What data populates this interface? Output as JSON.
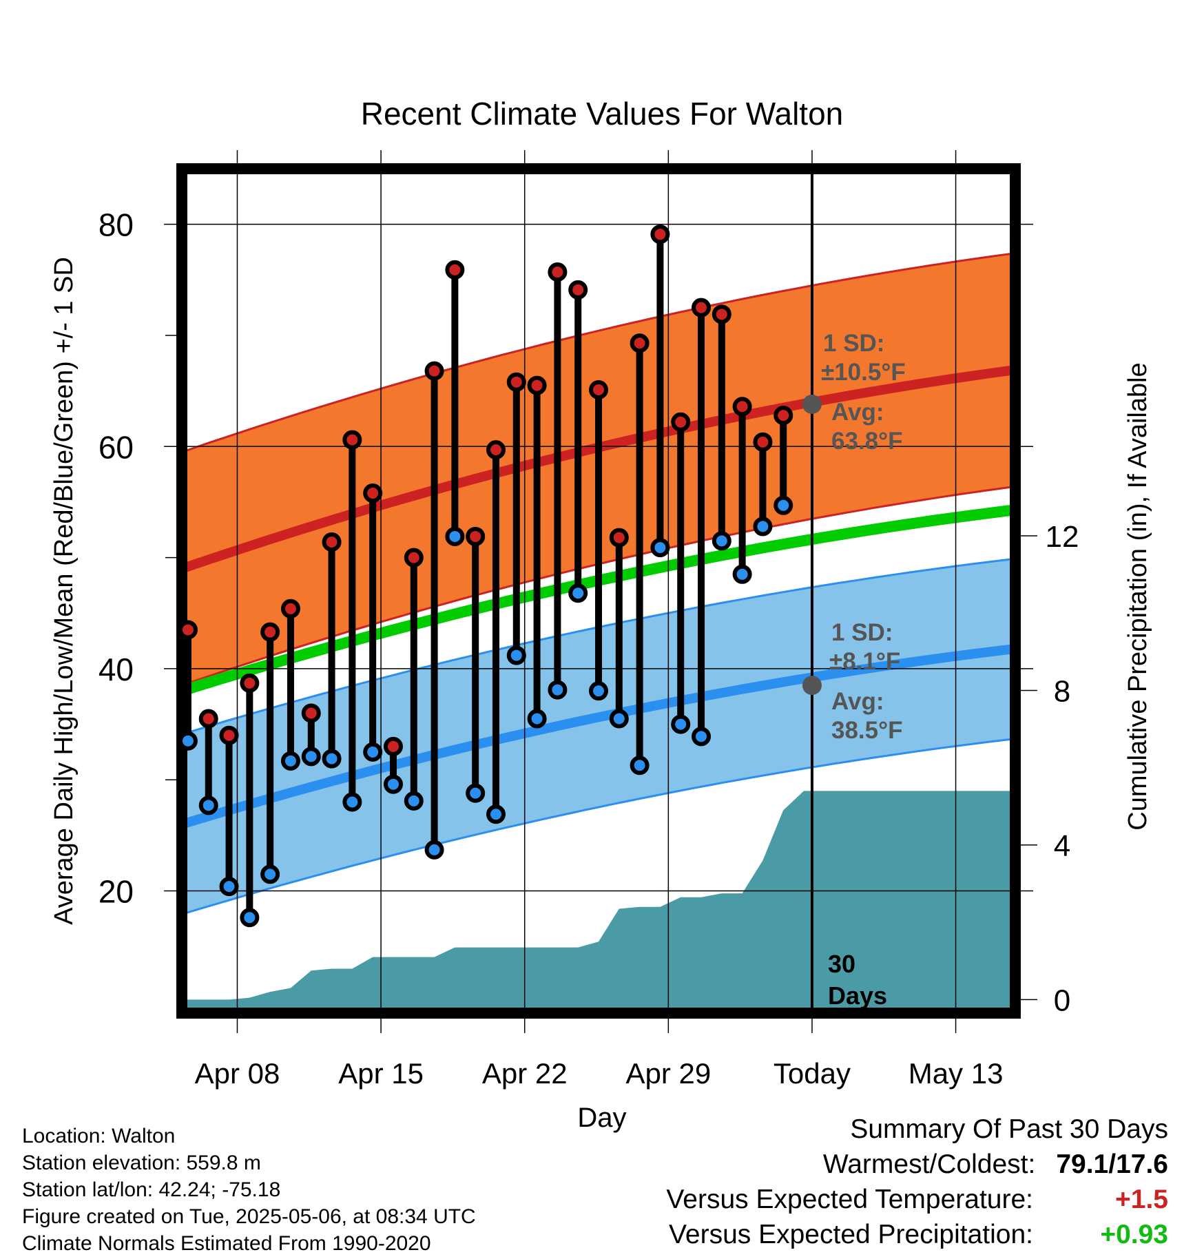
{
  "title": "Recent Climate Values For Walton",
  "colors": {
    "high": "#cc2222",
    "low": "#2b8ff0",
    "mean": "#00cc00",
    "warm_band": "#f4772e",
    "cold_band": "#86c3ea",
    "precip": "#4a9ba5",
    "avg_marker": "#555555",
    "pos_temp": "#cc2222",
    "pos_precip": "#11bb11"
  },
  "chart_data": {
    "type": "line",
    "xlabel": "Day",
    "ylabel": "Average Daily High/Low/Mean (Red/Blue/Green) +/- 1 SD",
    "y2label": "Cumulative Precipitation (in), If Available",
    "ylim": [
      9,
      85
    ],
    "y2lim": [
      -0.35,
      21.5
    ],
    "y_ticks": [
      "20",
      "40",
      "60",
      "80"
    ],
    "y2_ticks": [
      "0",
      "4",
      "8",
      "12"
    ],
    "x_ticks": [
      "Apr 08",
      "Apr 15",
      "Apr 22",
      "Apr 29",
      "Today",
      "May 13"
    ],
    "x_tick_days": [
      8,
      15,
      22,
      29,
      36,
      43
    ],
    "xlim": [
      5.3,
      45.9
    ],
    "today_day": 36,
    "days": [
      5.6,
      6.6,
      7.6,
      8.6,
      9.6,
      10.6,
      11.6,
      12.6,
      13.6,
      14.6,
      15.6,
      16.6,
      17.6,
      18.6,
      19.6,
      20.6,
      21.6,
      22.6,
      23.6,
      24.6,
      25.6,
      26.6,
      27.6,
      28.6,
      29.6,
      30.6,
      31.6,
      32.6,
      33.6,
      34.6
    ],
    "highs": [
      43.5,
      35.5,
      34.0,
      38.7,
      43.3,
      45.4,
      36.0,
      51.4,
      60.6,
      55.8,
      33.0,
      50.0,
      66.8,
      75.9,
      51.9,
      59.7,
      65.8,
      65.5,
      75.7,
      74.1,
      65.1,
      51.8,
      69.3,
      79.1,
      62.2,
      72.5,
      71.9,
      63.6,
      60.4,
      62.8
    ],
    "lows": [
      33.5,
      27.7,
      20.4,
      17.6,
      21.5,
      31.7,
      32.1,
      31.9,
      28.0,
      32.5,
      29.6,
      28.1,
      23.7,
      51.9,
      28.8,
      26.9,
      41.2,
      35.5,
      38.1,
      46.8,
      38.0,
      35.5,
      31.3,
      50.9,
      35.0,
      33.9,
      51.5,
      48.5,
      52.8,
      54.7
    ],
    "normal_days": [
      5.3,
      45.9
    ],
    "normal_high": [
      49.0,
      66.9
    ],
    "normal_low": [
      26.0,
      41.8
    ],
    "normal_mean": [
      38.0,
      54.3
    ],
    "high_sd": 10.5,
    "low_sd": 8.1,
    "high_sd_label": "1 SD:",
    "high_sd_value": "±10.5°F",
    "high_avg_label": "Avg:",
    "high_avg_value": "63.8°F",
    "low_sd_label": "1 SD:",
    "low_sd_value": "±8.1°F",
    "low_avg_label": "Avg:",
    "low_avg_value": "38.5°F",
    "today_avg_high": 63.8,
    "today_avg_low": 38.5,
    "period_label": [
      "30",
      "Days"
    ],
    "precip_days": [
      5.3,
      7.6,
      8.6,
      9.6,
      10.6,
      11.6,
      12.6,
      13.6,
      14.6,
      15.6,
      16.6,
      17.6,
      18.6,
      19.6,
      20.6,
      21.6,
      22.6,
      23.6,
      24.6,
      25.6,
      26.6,
      27.6,
      28.6,
      29.6,
      30.6,
      31.6,
      32.6,
      33.6,
      34.6,
      35.6,
      45.9
    ],
    "precip_cum": [
      0.0,
      0.0,
      0.05,
      0.2,
      0.3,
      0.75,
      0.8,
      0.8,
      1.1,
      1.1,
      1.1,
      1.1,
      1.35,
      1.35,
      1.35,
      1.35,
      1.35,
      1.35,
      1.35,
      1.5,
      2.35,
      2.4,
      2.4,
      2.65,
      2.65,
      2.75,
      2.75,
      3.6,
      4.9,
      5.4,
      5.4
    ]
  },
  "info": {
    "location": "Location: Walton",
    "elevation": "Station elevation: 559.8 m",
    "latlon": "Station lat/lon: 42.24; -75.18",
    "created": "Figure created on Tue, 2025-05-06, at 08:34 UTC",
    "normals": "Climate Normals Estimated From 1990-2020"
  },
  "summary": {
    "heading": "Summary Of Past 30 Days",
    "warm_cold_label": "Warmest/Coldest:",
    "warm_cold_value": "79.1/17.6",
    "temp_label": "Versus Expected Temperature:",
    "temp_value": "+1.5",
    "precip_label": "Versus Expected Precipitation:",
    "precip_value": "+0.93"
  }
}
